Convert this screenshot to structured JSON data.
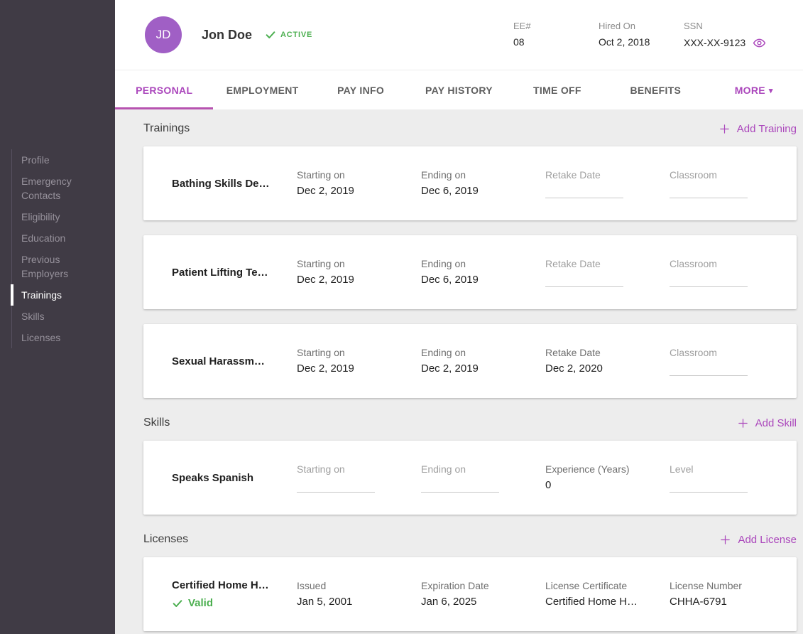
{
  "colors": {
    "accent": "#ab47bc",
    "green": "#4caf50",
    "sidebar_bg": "#403b45"
  },
  "header": {
    "avatar_initials": "JD",
    "name": "Jon Doe",
    "status": "ACTIVE",
    "meta": [
      {
        "label": "EE#",
        "value": "08"
      },
      {
        "label": "Hired On",
        "value": "Oct 2, 2018"
      },
      {
        "label": "SSN",
        "value": "XXX-XX-9123",
        "masked": true
      }
    ]
  },
  "tabs": [
    {
      "label": "PERSONAL",
      "active": true
    },
    {
      "label": "EMPLOYMENT"
    },
    {
      "label": "PAY INFO"
    },
    {
      "label": "PAY HISTORY"
    },
    {
      "label": "TIME OFF"
    },
    {
      "label": "BENEFITS"
    },
    {
      "label": "MORE",
      "accent": true,
      "chevron": true
    }
  ],
  "sidebar": {
    "items": [
      {
        "label": "Profile"
      },
      {
        "label": "Emergency Contacts"
      },
      {
        "label": "Eligibility"
      },
      {
        "label": "Education"
      },
      {
        "label": "Previous Employers"
      },
      {
        "label": "Trainings",
        "active": true
      },
      {
        "label": "Skills"
      },
      {
        "label": "Licenses"
      }
    ]
  },
  "sections": [
    {
      "title": "Trainings",
      "add_label": "Add Training",
      "rows": [
        {
          "name": "Bathing Skills De…",
          "fields": [
            {
              "label": "Starting on",
              "value": "Dec 2, 2019"
            },
            {
              "label": "Ending on",
              "value": "Dec 6, 2019"
            },
            {
              "label": "Retake Date",
              "value": ""
            },
            {
              "label": "Classroom",
              "value": ""
            }
          ]
        },
        {
          "name": "Patient Lifting Te…",
          "fields": [
            {
              "label": "Starting on",
              "value": "Dec 2, 2019"
            },
            {
              "label": "Ending on",
              "value": "Dec 6, 2019"
            },
            {
              "label": "Retake Date",
              "value": ""
            },
            {
              "label": "Classroom",
              "value": ""
            }
          ]
        },
        {
          "name": "Sexual Harassm…",
          "fields": [
            {
              "label": "Starting on",
              "value": "Dec 2, 2019"
            },
            {
              "label": "Ending on",
              "value": "Dec 2, 2019"
            },
            {
              "label": "Retake Date",
              "value": "Dec 2, 2020"
            },
            {
              "label": "Classroom",
              "value": ""
            }
          ]
        }
      ]
    },
    {
      "title": "Skills",
      "add_label": "Add Skill",
      "rows": [
        {
          "name": "Speaks Spanish",
          "fields": [
            {
              "label": "Starting on",
              "value": ""
            },
            {
              "label": "Ending on",
              "value": ""
            },
            {
              "label": "Experience (Years)",
              "value": "0"
            },
            {
              "label": "Level",
              "value": ""
            }
          ]
        }
      ]
    },
    {
      "title": "Licenses",
      "add_label": "Add License",
      "rows": [
        {
          "name": "Certified Home H…",
          "badge": "Valid",
          "fields": [
            {
              "label": "Issued",
              "value": "Jan 5, 2001"
            },
            {
              "label": "Expiration Date",
              "value": "Jan 6, 2025"
            },
            {
              "label": "License Certificate",
              "value": "Certified Home H…"
            },
            {
              "label": "License Number",
              "value": "CHHA-6791"
            }
          ]
        }
      ]
    }
  ],
  "icons": {
    "status_check": "check-icon",
    "ssn_visibility": "eye-icon",
    "section_add": "plus-icon",
    "more_dropdown": "chevron-down-icon",
    "license_valid": "check-icon"
  }
}
